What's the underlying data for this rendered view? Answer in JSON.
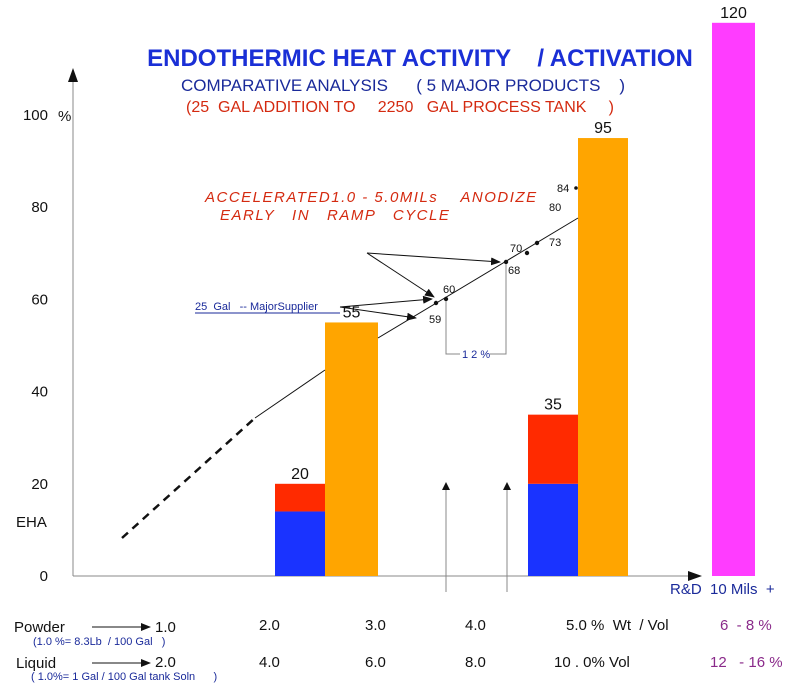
{
  "chart_data": {
    "type": "bar",
    "title": "ENDOTHERMIC HEAT ACTIVITY    / ACTIVATION",
    "subtitle": "COMPARATIVE ANALYSIS      ( 5 MAJOR PRODUCTS    )",
    "subtitle2": "(25  GAL ADDITION TO     2250   GAL PROCESS TANK     )",
    "ylabel": "EHA",
    "ylabel_unit": "%",
    "ylim": [
      0,
      100
    ],
    "yticks": [
      "0",
      "20",
      "40",
      "60",
      "80",
      "100"
    ],
    "grid": false,
    "xlabel": "R&D  10 Mils  +",
    "bars": [
      {
        "name": "product-a-stacked",
        "total": 20,
        "label": "20",
        "segments": [
          {
            "name": "blue",
            "value": 14,
            "color": "#1a33ff"
          },
          {
            "name": "red",
            "value": 6,
            "color": "#ff2a00"
          }
        ]
      },
      {
        "name": "product-b",
        "total": 55,
        "label": "55",
        "segments": [
          {
            "name": "orange",
            "value": 55,
            "color": "#ffa500"
          }
        ]
      },
      {
        "name": "product-c-stacked",
        "total": 35,
        "label": "35",
        "segments": [
          {
            "name": "blue",
            "value": 20,
            "color": "#1a33ff"
          },
          {
            "name": "red",
            "value": 15,
            "color": "#ff2a00"
          }
        ]
      },
      {
        "name": "product-d",
        "total": 95,
        "label": "95",
        "segments": [
          {
            "name": "orange",
            "value": 95,
            "color": "#ffa500"
          }
        ]
      },
      {
        "name": "rnd-10-mils",
        "total": 120,
        "label": "120",
        "segments": [
          {
            "name": "magenta",
            "value": 120,
            "color": "#ff3cff"
          }
        ]
      }
    ],
    "trend_points": [
      {
        "label": "59",
        "value": 59
      },
      {
        "label": "60",
        "value": 60
      },
      {
        "label": "68",
        "value": 68
      },
      {
        "label": "70",
        "value": 70
      },
      {
        "label": "73",
        "value": 73
      },
      {
        "label": "80",
        "value": 80
      },
      {
        "label": "84",
        "value": 84
      }
    ],
    "annotations": {
      "accelerated_line1": "ACCELERATED1.0 - 5.0MILs    ANODIZE",
      "accelerated_line2": "EARLY   IN   RAMP   CYCLE",
      "supplier": "25  Gal   -- MajorSupplier",
      "gap": "1 2 %"
    },
    "rows": [
      {
        "label": "Powder",
        "note": "(1.0 %= 8.3Lb  / 100 Gal   )",
        "values": [
          "1.0",
          "2.0",
          "3.0",
          "4.0",
          "5.0 %  Wt  / Vol"
        ],
        "rnd_value": "6  - 8 %"
      },
      {
        "label": "Liquid",
        "note": "( 1.0%= 1 Gal / 100 Gal tank Soln      )",
        "values": [
          "2.0",
          "4.0",
          "6.0",
          "8.0",
          "10 . 0% Vol"
        ],
        "rnd_value": "12   - 16 %"
      }
    ]
  }
}
